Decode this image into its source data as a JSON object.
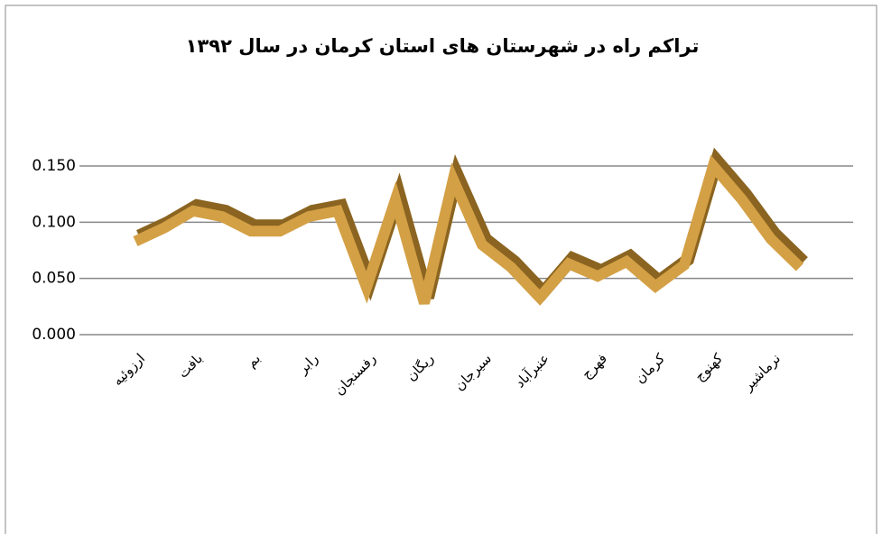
{
  "chart_data": {
    "type": "line",
    "title": "تراکم راه در شهرستان های استان کرمان در سال ۱۳۹۲",
    "categories": [
      "ارزوئیه",
      null,
      "بافت",
      null,
      "بم",
      null,
      "رابر",
      null,
      "رفسنجان",
      null,
      "ریگان",
      null,
      "سیرجان",
      null,
      "عنبرآباد",
      null,
      "فهرج",
      null,
      "کرمان",
      null,
      "کهنوج",
      null,
      "نرماشیر",
      null
    ],
    "series": [
      {
        "name": "تراکم راه",
        "color": "#d4a045",
        "values": [
          0.083,
          0.095,
          0.11,
          0.105,
          0.092,
          0.092,
          0.105,
          0.11,
          0.042,
          0.12,
          0.028,
          0.138,
          0.08,
          0.06,
          0.033,
          0.063,
          0.052,
          0.065,
          0.043,
          0.062,
          0.15,
          0.12,
          0.085,
          0.06
        ]
      }
    ],
    "ylim": [
      0,
      0.15
    ],
    "yticks": [
      {
        "value": 0,
        "label": "0.000"
      },
      {
        "value": 0.05,
        "label": "0.050"
      },
      {
        "value": 0.1,
        "label": "0.100"
      },
      {
        "value": 0.15,
        "label": "0.150"
      }
    ],
    "grid": true
  }
}
